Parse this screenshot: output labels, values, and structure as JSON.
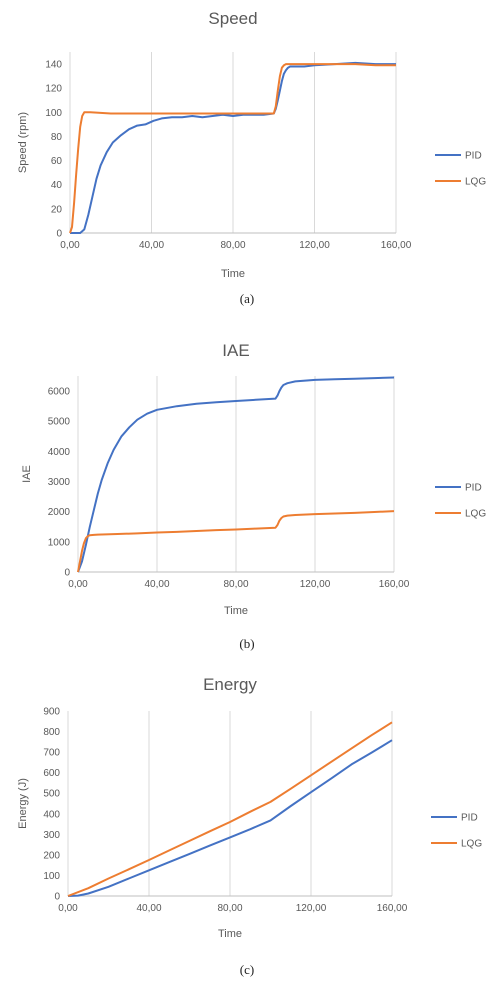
{
  "colors": {
    "pid": "#4472C4",
    "lqg": "#ED7D31",
    "grid": "#d9d9d9",
    "text": "#595959"
  },
  "captions": [
    "(a)",
    "(b)",
    "(c)"
  ],
  "chart_data": [
    {
      "type": "line",
      "title": "Speed",
      "xlabel": "Time",
      "ylabel": "Speed (rpm)",
      "xlim": [
        0,
        160
      ],
      "ylim": [
        0,
        150
      ],
      "xticks": [
        0,
        40,
        80,
        120,
        160
      ],
      "xtick_labels": [
        "0,00",
        "40,00",
        "80,00",
        "120,00",
        "160,00"
      ],
      "yticks": [
        0,
        20,
        40,
        60,
        80,
        100,
        120,
        140
      ],
      "ytick_labels": [
        "0",
        "20",
        "40",
        "60",
        "80",
        "100",
        "120",
        "140"
      ],
      "grid": "vertical",
      "legend": "right",
      "series": [
        {
          "name": "PID",
          "x": [
            0,
            5,
            7,
            9,
            11,
            13,
            15,
            18,
            21,
            25,
            29,
            33,
            37,
            41,
            45,
            50,
            55,
            60,
            65,
            70,
            75,
            80,
            85,
            90,
            95,
            100,
            101,
            102,
            103,
            104,
            105,
            106,
            107,
            108,
            110,
            115,
            120,
            130,
            140,
            150,
            160
          ],
          "y": [
            0,
            0,
            3,
            15,
            30,
            45,
            56,
            67,
            75,
            81,
            86,
            89,
            90,
            93,
            95,
            96,
            96,
            97,
            96,
            97,
            98,
            97,
            98,
            98,
            98,
            99,
            103,
            110,
            118,
            126,
            132,
            135,
            137,
            138,
            138,
            138,
            139,
            140,
            141,
            140,
            140
          ]
        },
        {
          "name": "LQG",
          "x": [
            0,
            1,
            2,
            3,
            4,
            5,
            6,
            7,
            10,
            20,
            30,
            40,
            50,
            60,
            70,
            80,
            90,
            100,
            101,
            102,
            103,
            104,
            105,
            106,
            110,
            120,
            130,
            140,
            150,
            160
          ],
          "y": [
            0,
            5,
            25,
            48,
            70,
            88,
            97,
            100,
            100,
            99,
            99,
            99,
            99,
            99,
            99,
            99,
            99,
            99,
            105,
            118,
            130,
            137,
            139,
            140,
            140,
            140,
            140,
            140,
            139,
            139
          ]
        }
      ]
    },
    {
      "type": "line",
      "title": "IAE",
      "xlabel": "Time",
      "ylabel": "IAE",
      "xlim": [
        0,
        160
      ],
      "ylim": [
        0,
        6500
      ],
      "xticks": [
        0,
        40,
        80,
        120,
        160
      ],
      "xtick_labels": [
        "0,00",
        "40,00",
        "80,00",
        "120,00",
        "160,00"
      ],
      "yticks": [
        0,
        1000,
        2000,
        3000,
        4000,
        5000,
        6000
      ],
      "ytick_labels": [
        "0",
        "1000",
        "2000",
        "3000",
        "4000",
        "5000",
        "6000"
      ],
      "grid": "vertical",
      "legend": "right",
      "series": [
        {
          "name": "PID",
          "x": [
            0,
            2,
            4,
            6,
            8,
            10,
            12,
            15,
            18,
            22,
            26,
            30,
            35,
            40,
            50,
            60,
            70,
            80,
            90,
            100,
            101,
            102,
            103,
            104,
            106,
            110,
            120,
            130,
            140,
            150,
            160
          ],
          "y": [
            0,
            350,
            900,
            1500,
            2050,
            2600,
            3050,
            3600,
            4050,
            4500,
            4800,
            5050,
            5250,
            5380,
            5500,
            5580,
            5630,
            5670,
            5710,
            5750,
            5850,
            6000,
            6120,
            6200,
            6260,
            6320,
            6370,
            6390,
            6410,
            6430,
            6450
          ]
        },
        {
          "name": "LQG",
          "x": [
            0,
            1,
            2,
            3,
            4,
            5,
            6,
            8,
            10,
            20,
            30,
            40,
            50,
            60,
            70,
            80,
            90,
            100,
            101,
            102,
            103,
            104,
            106,
            110,
            120,
            130,
            140,
            150,
            160
          ],
          "y": [
            0,
            350,
            700,
            950,
            1120,
            1190,
            1220,
            1230,
            1240,
            1260,
            1280,
            1310,
            1330,
            1360,
            1390,
            1410,
            1440,
            1470,
            1560,
            1700,
            1790,
            1840,
            1870,
            1890,
            1920,
            1940,
            1960,
            1990,
            2020
          ]
        }
      ]
    },
    {
      "type": "line",
      "title": "Energy",
      "xlabel": "Time",
      "ylabel": "Energy (J)",
      "xlim": [
        0,
        160
      ],
      "ylim": [
        0,
        900
      ],
      "xticks": [
        0,
        40,
        80,
        120,
        160
      ],
      "xtick_labels": [
        "0,00",
        "40,00",
        "80,00",
        "120,00",
        "160,00"
      ],
      "yticks": [
        0,
        100,
        200,
        300,
        400,
        500,
        600,
        700,
        800,
        900
      ],
      "ytick_labels": [
        "0",
        "100",
        "200",
        "300",
        "400",
        "500",
        "600",
        "700",
        "800",
        "900"
      ],
      "grid": "vertical",
      "legend": "right",
      "series": [
        {
          "name": "PID",
          "x": [
            0,
            5,
            10,
            20,
            30,
            40,
            50,
            60,
            70,
            80,
            90,
            100,
            110,
            120,
            130,
            140,
            150,
            160
          ],
          "y": [
            0,
            2,
            12,
            45,
            85,
            125,
            165,
            205,
            245,
            285,
            325,
            368,
            438,
            505,
            572,
            640,
            698,
            758
          ]
        },
        {
          "name": "LQG",
          "x": [
            0,
            10,
            20,
            30,
            40,
            50,
            60,
            70,
            80,
            90,
            100,
            110,
            120,
            130,
            140,
            150,
            160
          ],
          "y": [
            0,
            38,
            85,
            130,
            175,
            222,
            268,
            315,
            360,
            410,
            458,
            522,
            587,
            653,
            718,
            783,
            845
          ]
        }
      ]
    }
  ]
}
